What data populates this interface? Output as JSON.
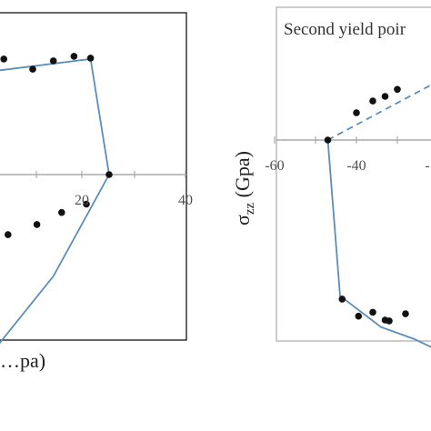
{
  "chart_data": [
    {
      "type": "line",
      "panel": "left",
      "xlabel": "…pa)",
      "ylabel": "",
      "x_ticks": [
        "20",
        "40"
      ],
      "xlim": [
        -10,
        42
      ],
      "ylim": [
        -22,
        16
      ],
      "grid": false,
      "colors": {
        "line": "#5b8db8",
        "marker": "#111111",
        "axis": "#aaaaaa",
        "frame": "#000000"
      },
      "series": [
        {
          "style": "solid",
          "x": [
            -10,
            17,
            21.5,
            8,
            -10
          ],
          "y": [
            11,
            12.5,
            0,
            -11,
            -21
          ]
        }
      ],
      "scatter": {
        "x": [
          -4,
          3,
          8,
          13,
          17,
          21.5,
          16,
          10,
          4,
          -3,
          -7
        ],
        "y": [
          12.5,
          11.4,
          12.3,
          12.8,
          12.6,
          0,
          -3.2,
          -4.1,
          -5.4,
          -6.5,
          -8.0
        ]
      }
    },
    {
      "type": "line",
      "panel": "right",
      "annotation": "Second yield poir",
      "ylabel_main": "σ",
      "ylabel_sub": "zz",
      "ylabel_unit": " (Gpa)",
      "x_ticks": [
        "-60",
        "-40",
        "-"
      ],
      "xlim": [
        -62,
        -20
      ],
      "ylim": [
        -30,
        18
      ],
      "grid": false,
      "colors": {
        "line": "#5b8db8",
        "marker": "#111111",
        "axis": "#aaaaaa",
        "frame": "#aaaaaa"
      },
      "series": [
        {
          "style": "dashed",
          "x": [
            -47,
            -22
          ],
          "y": [
            0,
            7
          ]
        },
        {
          "style": "solid",
          "x": [
            -47,
            -44,
            -34,
            -26,
            -20
          ],
          "y": [
            0,
            -20,
            -24,
            -25.5,
            -27
          ]
        }
      ],
      "scatter": {
        "x": [
          -47,
          -40,
          -36,
          -33,
          -30,
          -43.5,
          -39.5,
          -36,
          -33,
          -32,
          -28
        ],
        "y": [
          0,
          3.5,
          5,
          5.6,
          6.5,
          -20.4,
          -22.6,
          -22.1,
          -23.1,
          -23.2,
          -22.3
        ]
      }
    }
  ]
}
